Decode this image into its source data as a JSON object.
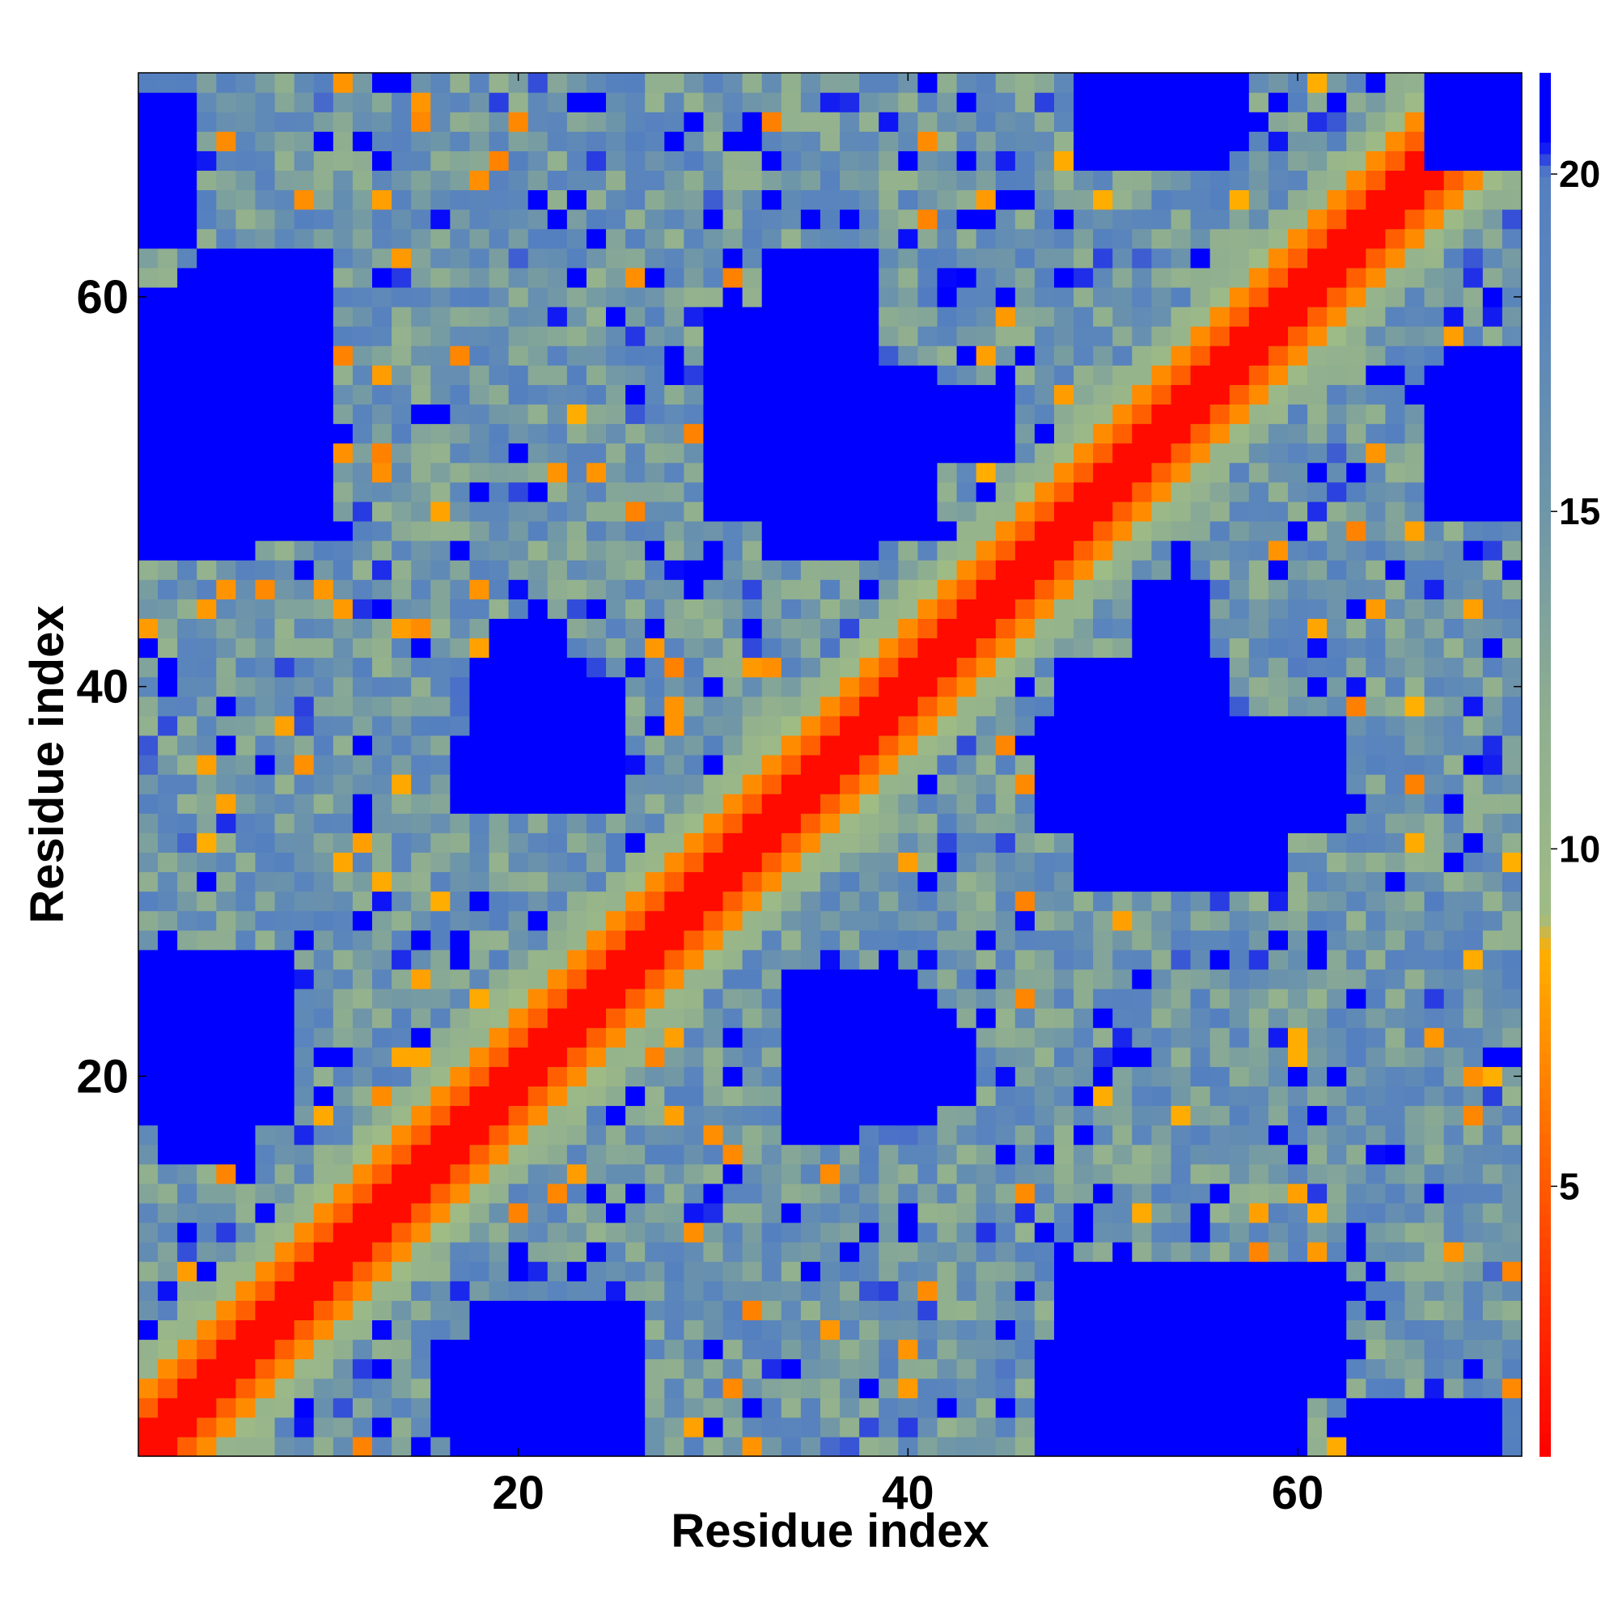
{
  "chart_data": {
    "type": "heatmap",
    "title": "",
    "xlabel": "Residue index",
    "ylabel": "Residue index",
    "n_residues": 71,
    "x_range": [
      0.5,
      71.5
    ],
    "y_range": [
      0.5,
      71.5
    ],
    "x_ticks": [
      20,
      40,
      60
    ],
    "y_ticks": [
      20,
      40,
      60
    ],
    "colorbar": {
      "range": [
        1,
        21.5
      ],
      "ticks": [
        5,
        10,
        15,
        20
      ],
      "stops": [
        {
          "value": 1,
          "color": "#ff0000"
        },
        {
          "value": 3,
          "color": "#ff2a00"
        },
        {
          "value": 5,
          "color": "#ff5a00"
        },
        {
          "value": 7,
          "color": "#ff8c00"
        },
        {
          "value": 8.5,
          "color": "#ffb000"
        },
        {
          "value": 9,
          "color": "#9fbc85"
        },
        {
          "value": 12,
          "color": "#8fae90"
        },
        {
          "value": 15,
          "color": "#6f96a8"
        },
        {
          "value": 18,
          "color": "#5b86bb"
        },
        {
          "value": 20,
          "color": "#5580c0"
        },
        {
          "value": 20.5,
          "color": "#0000ff"
        },
        {
          "value": 21.5,
          "color": "#0000ff"
        }
      ]
    },
    "matrix_description": "Symmetric residue-residue distance map (71 x 71); values are distances, diagonal ~1, capped at 21.5",
    "blocks": [
      {
        "i": [
          1,
          7
        ],
        "j": [
          50,
          60
        ],
        "value": 21.5
      },
      {
        "i": [
          4,
          10
        ],
        "j": [
          52,
          62
        ],
        "value": 21.5
      },
      {
        "i": [
          1,
          8
        ],
        "j": [
          18,
          26
        ],
        "value": 21.5
      },
      {
        "i": [
          2,
          6
        ],
        "j": [
          16,
          22
        ],
        "value": 21.5
      },
      {
        "i": [
          30,
          38
        ],
        "j": [
          49,
          59
        ],
        "value": 21.5
      },
      {
        "i": [
          33,
          38
        ],
        "j": [
          47,
          62
        ],
        "value": 21.5
      },
      {
        "i": [
          48,
          56
        ],
        "j": [
          36,
          41
        ],
        "value": 21.5
      },
      {
        "i": [
          52,
          55
        ],
        "j": [
          33,
          45
        ],
        "value": 21.5
      },
      {
        "i": [
          36,
          41
        ],
        "j": [
          18,
          23
        ],
        "value": 21.5
      },
      {
        "i": [
          34,
          37
        ],
        "j": [
          17,
          25
        ],
        "value": 21.5
      },
      {
        "i": [
          19,
          25
        ],
        "j": [
          35,
          40
        ],
        "value": 21.5
      },
      {
        "i": [
          19,
          22
        ],
        "j": [
          34,
          43
        ],
        "value": 21.5
      },
      {
        "i": [
          47,
          60
        ],
        "j": [
          1,
          6
        ],
        "value": 21.5
      },
      {
        "i": [
          48,
          59
        ],
        "j": [
          1,
          10
        ],
        "value": 21.5
      },
      {
        "i": [
          19,
          25
        ],
        "j": [
          1,
          8
        ],
        "value": 21.5
      },
      {
        "i": [
          67,
          71
        ],
        "j": [
          49,
          56
        ],
        "value": 21.5
      },
      {
        "i": [
          67,
          71
        ],
        "j": [
          67,
          71
        ],
        "value": 21.5
      },
      {
        "i": [
          53,
          57
        ],
        "j": [
          68,
          71
        ],
        "value": 21.5
      },
      {
        "i": [
          49,
          56
        ],
        "j": [
          67,
          71
        ],
        "value": 21.5
      },
      {
        "i": [
          1,
          3
        ],
        "j": [
          63,
          70
        ],
        "value": 21.5
      }
    ]
  }
}
